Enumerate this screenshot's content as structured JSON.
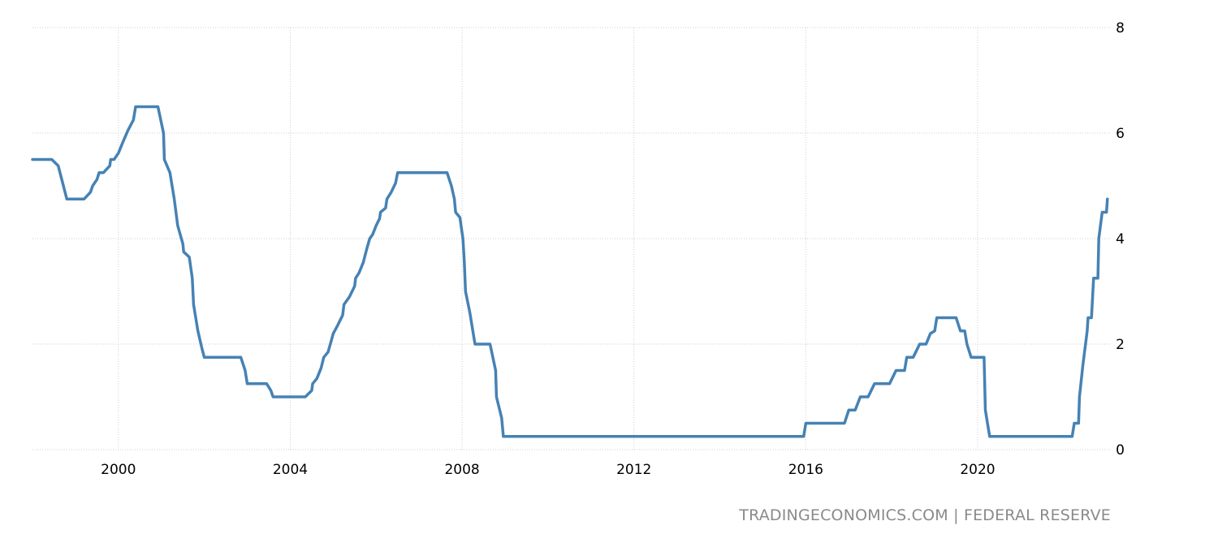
{
  "source_label": "TRADINGECONOMICS.COM | FEDERAL RESERVE",
  "chart_data": {
    "type": "line",
    "title": "",
    "xlabel": "",
    "ylabel": "",
    "xlim": [
      1998.0,
      2023.1
    ],
    "ylim": [
      0,
      8
    ],
    "x_ticks": [
      2000,
      2004,
      2008,
      2012,
      2016,
      2020
    ],
    "x_tick_labels": [
      "2000",
      "2004",
      "2008",
      "2012",
      "2016",
      "2020"
    ],
    "y_ticks": [
      0,
      2,
      4,
      6,
      8
    ],
    "y_tick_labels": [
      "0",
      "2",
      "4",
      "6",
      "8"
    ],
    "y_axis_side": "right",
    "grid": true,
    "legend": "none",
    "color": "#4682b4",
    "series": [
      {
        "points": [
          [
            1998.0,
            5.5
          ],
          [
            1998.45,
            5.5
          ],
          [
            1998.6,
            5.38
          ],
          [
            1998.72,
            5.0
          ],
          [
            1998.8,
            4.75
          ],
          [
            1999.2,
            4.75
          ],
          [
            1999.35,
            4.88
          ],
          [
            1999.4,
            5.0
          ],
          [
            1999.5,
            5.12
          ],
          [
            1999.55,
            5.25
          ],
          [
            1999.65,
            5.25
          ],
          [
            1999.8,
            5.38
          ],
          [
            1999.82,
            5.5
          ],
          [
            1999.9,
            5.5
          ],
          [
            2000.0,
            5.62
          ],
          [
            2000.1,
            5.82
          ],
          [
            2000.22,
            6.05
          ],
          [
            2000.35,
            6.25
          ],
          [
            2000.4,
            6.5
          ],
          [
            2000.92,
            6.5
          ],
          [
            2001.05,
            6.0
          ],
          [
            2001.07,
            5.5
          ],
          [
            2001.2,
            5.25
          ],
          [
            2001.3,
            4.75
          ],
          [
            2001.38,
            4.25
          ],
          [
            2001.5,
            3.9
          ],
          [
            2001.52,
            3.75
          ],
          [
            2001.65,
            3.65
          ],
          [
            2001.72,
            3.25
          ],
          [
            2001.75,
            2.75
          ],
          [
            2001.85,
            2.25
          ],
          [
            2001.95,
            1.9
          ],
          [
            2002.0,
            1.75
          ],
          [
            2002.85,
            1.75
          ],
          [
            2002.95,
            1.5
          ],
          [
            2003.0,
            1.25
          ],
          [
            2003.45,
            1.25
          ],
          [
            2003.55,
            1.12
          ],
          [
            2003.6,
            1.0
          ],
          [
            2004.35,
            1.0
          ],
          [
            2004.5,
            1.12
          ],
          [
            2004.52,
            1.25
          ],
          [
            2004.62,
            1.35
          ],
          [
            2004.72,
            1.55
          ],
          [
            2004.78,
            1.75
          ],
          [
            2004.88,
            1.85
          ],
          [
            2004.95,
            2.05
          ],
          [
            2005.0,
            2.2
          ],
          [
            2005.1,
            2.35
          ],
          [
            2005.22,
            2.55
          ],
          [
            2005.25,
            2.75
          ],
          [
            2005.38,
            2.9
          ],
          [
            2005.5,
            3.1
          ],
          [
            2005.52,
            3.25
          ],
          [
            2005.6,
            3.35
          ],
          [
            2005.7,
            3.55
          ],
          [
            2005.78,
            3.8
          ],
          [
            2005.85,
            4.0
          ],
          [
            2005.92,
            4.08
          ],
          [
            2006.0,
            4.25
          ],
          [
            2006.08,
            4.38
          ],
          [
            2006.1,
            4.5
          ],
          [
            2006.22,
            4.58
          ],
          [
            2006.25,
            4.75
          ],
          [
            2006.35,
            4.88
          ],
          [
            2006.45,
            5.05
          ],
          [
            2006.5,
            5.25
          ],
          [
            2007.65,
            5.25
          ],
          [
            2007.75,
            5.0
          ],
          [
            2007.82,
            4.75
          ],
          [
            2007.85,
            4.5
          ],
          [
            2007.95,
            4.4
          ],
          [
            2008.02,
            4.0
          ],
          [
            2008.05,
            3.6
          ],
          [
            2008.08,
            3.0
          ],
          [
            2008.18,
            2.6
          ],
          [
            2008.28,
            2.1
          ],
          [
            2008.3,
            2.0
          ],
          [
            2008.65,
            2.0
          ],
          [
            2008.78,
            1.5
          ],
          [
            2008.8,
            1.0
          ],
          [
            2008.92,
            0.6
          ],
          [
            2008.96,
            0.25
          ],
          [
            2015.95,
            0.25
          ],
          [
            2016.0,
            0.5
          ],
          [
            2016.9,
            0.5
          ],
          [
            2017.0,
            0.75
          ],
          [
            2017.15,
            0.75
          ],
          [
            2017.27,
            1.0
          ],
          [
            2017.45,
            1.0
          ],
          [
            2017.6,
            1.25
          ],
          [
            2017.95,
            1.25
          ],
          [
            2018.1,
            1.5
          ],
          [
            2018.3,
            1.5
          ],
          [
            2018.35,
            1.75
          ],
          [
            2018.5,
            1.75
          ],
          [
            2018.65,
            2.0
          ],
          [
            2018.8,
            2.0
          ],
          [
            2018.9,
            2.2
          ],
          [
            2019.0,
            2.25
          ],
          [
            2019.05,
            2.5
          ],
          [
            2019.5,
            2.5
          ],
          [
            2019.6,
            2.25
          ],
          [
            2019.7,
            2.25
          ],
          [
            2019.75,
            2.0
          ],
          [
            2019.85,
            1.75
          ],
          [
            2020.15,
            1.75
          ],
          [
            2020.18,
            0.75
          ],
          [
            2020.28,
            0.25
          ],
          [
            2022.2,
            0.25
          ],
          [
            2022.25,
            0.5
          ],
          [
            2022.35,
            0.5
          ],
          [
            2022.37,
            1.0
          ],
          [
            2022.45,
            1.6
          ],
          [
            2022.55,
            2.25
          ],
          [
            2022.57,
            2.5
          ],
          [
            2022.65,
            2.5
          ],
          [
            2022.7,
            3.25
          ],
          [
            2022.8,
            3.25
          ],
          [
            2022.82,
            4.0
          ],
          [
            2022.9,
            4.5
          ],
          [
            2023.0,
            4.5
          ],
          [
            2023.02,
            4.75
          ]
        ]
      }
    ]
  }
}
